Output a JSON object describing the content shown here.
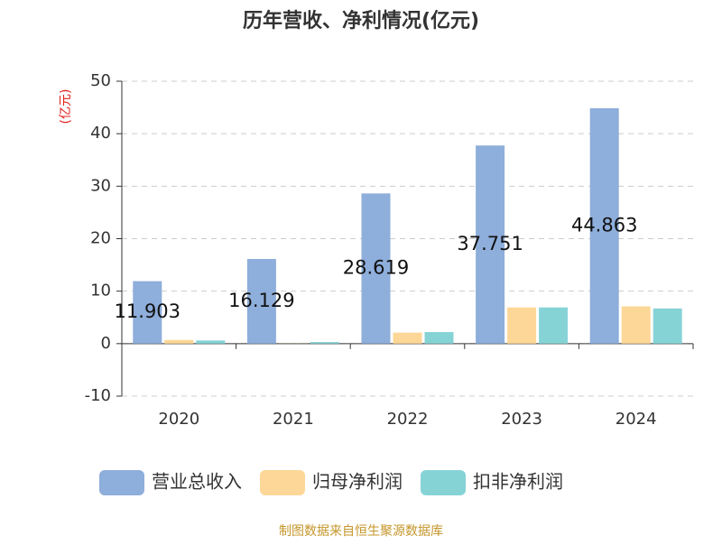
{
  "chart_data": {
    "type": "bar",
    "title": "历年营收、净利情况(亿元)",
    "y_label": "(亿元)",
    "source": "制图数据来自恒生聚源数据库",
    "categories": [
      "2020",
      "2021",
      "2022",
      "2023",
      "2024"
    ],
    "series": [
      {
        "name": "营业总收入",
        "color": "#8eaedb",
        "values": [
          11.903,
          16.129,
          28.619,
          37.751,
          44.863
        ]
      },
      {
        "name": "归母净利润",
        "color": "#fdd797",
        "values": [
          0.7,
          0.02,
          2.1,
          6.9,
          7.1
        ]
      },
      {
        "name": "扣非净利润",
        "color": "#86d3d6",
        "values": [
          0.6,
          0.3,
          2.2,
          6.9,
          6.7
        ]
      }
    ],
    "label_series": 0,
    "ylim": [
      -10,
      50
    ],
    "yticks": [
      -10,
      0,
      10,
      20,
      30,
      40,
      50
    ],
    "grid": true
  }
}
